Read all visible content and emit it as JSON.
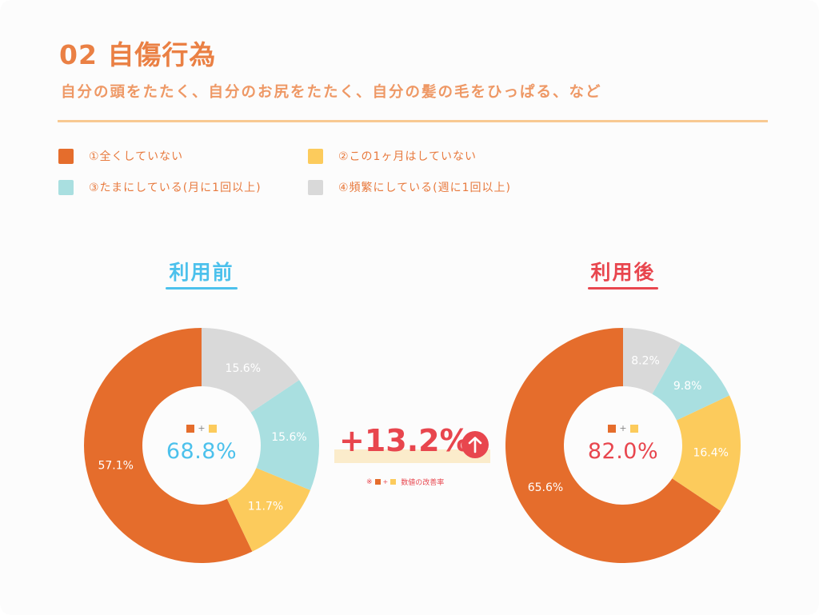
{
  "header": {
    "title": "02 自傷行為",
    "subtitle": "自分の頭をたたく、自分のお尻をたたく、自分の髪の毛をひっぱる、など"
  },
  "legend": [
    {
      "label": "①全くしていない",
      "color": "#e56d2c"
    },
    {
      "label": "②この1ヶ月はしていない",
      "color": "#fccb5c"
    },
    {
      "label": "③たまにしている(月に1回以上)",
      "color": "#a9dfe0"
    },
    {
      "label": "④頻繁にしている(週に1回以上)",
      "color": "#d9d9d9"
    }
  ],
  "chart_data": [
    {
      "type": "pie",
      "title": "利用前",
      "title_color": "#4cc1ec",
      "categories": [
        "①全くしていない",
        "②この1ヶ月はしていない",
        "③たまにしている(月に1回以上)",
        "④頻繁にしている(週に1回以上)"
      ],
      "values": [
        57.1,
        11.7,
        15.6,
        15.6
      ],
      "value_labels": [
        "57.1%",
        "11.7%",
        "15.6%",
        "15.6%"
      ],
      "colors": [
        "#e56d2c",
        "#fccb5c",
        "#a9dfe0",
        "#d9d9d9"
      ],
      "center_value": "68.8%",
      "center_color": "#4cc1ec"
    },
    {
      "type": "pie",
      "title": "利用後",
      "title_color": "#e8464e",
      "categories": [
        "①全くしていない",
        "②この1ヶ月はしていない",
        "③たまにしている(月に1回以上)",
        "④頻繁にしている(週に1回以上)"
      ],
      "values": [
        65.6,
        16.4,
        9.8,
        8.2
      ],
      "value_labels": [
        "65.6%",
        "16.4%",
        "9.8%",
        "8.2%"
      ],
      "colors": [
        "#e56d2c",
        "#fccb5c",
        "#a9dfe0",
        "#d9d9d9"
      ],
      "center_value": "82.0%",
      "center_color": "#e8464e"
    }
  ],
  "improvement": {
    "value": "+13.2%",
    "note_prefix": "※",
    "note_plus": "+",
    "note_text": "数値の改善率",
    "center_plus": "+",
    "arrow_icon": "arrow-up-icon",
    "color": "#e8464e"
  }
}
